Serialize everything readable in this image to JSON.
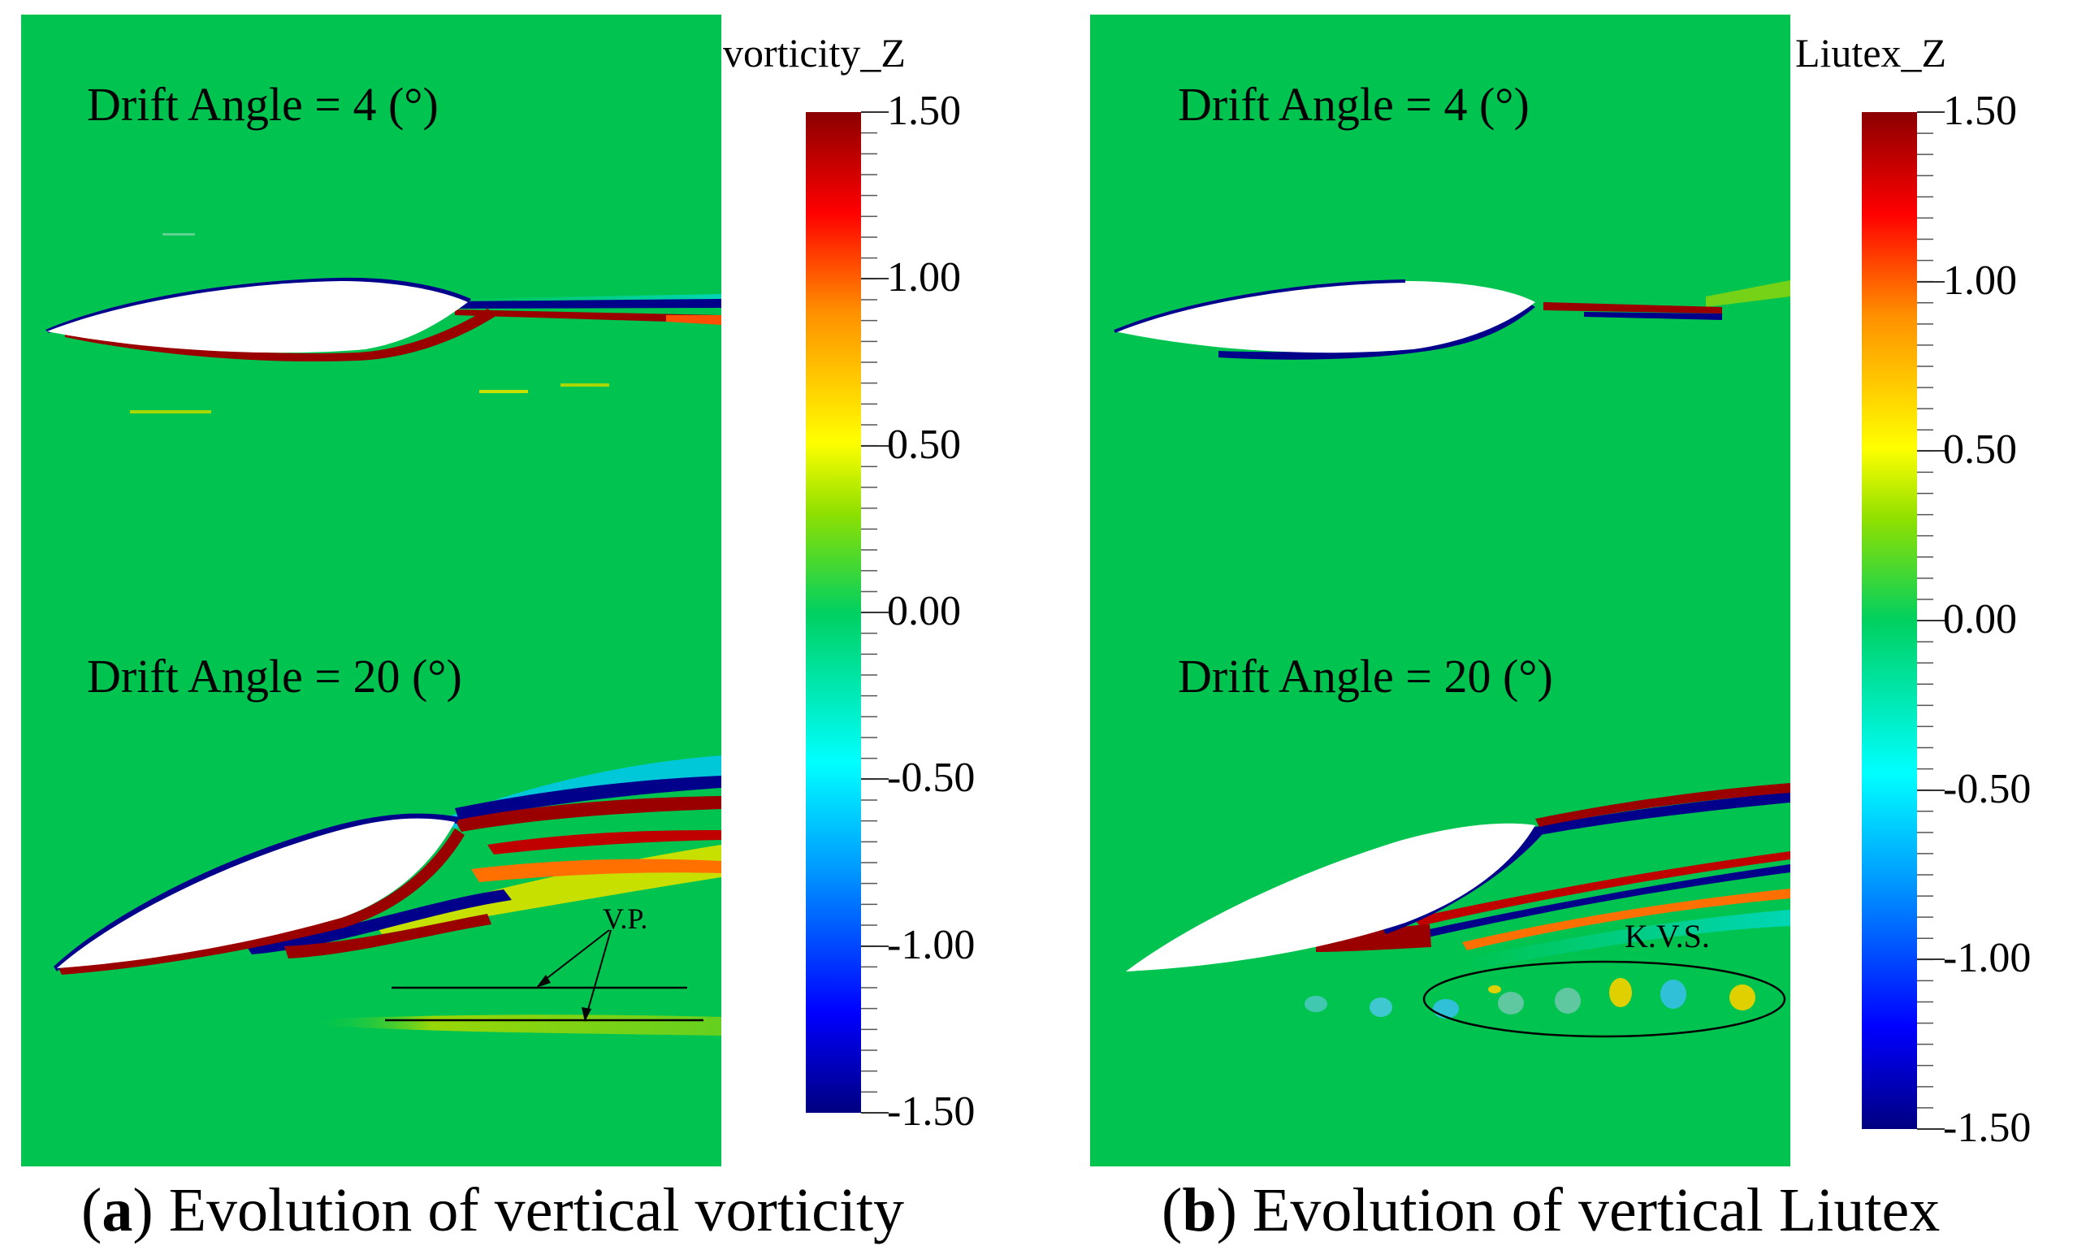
{
  "panels": [
    {
      "id": "a",
      "colorbar": {
        "title": "vorticity_Z",
        "ticks": [
          "1.50",
          "1.00",
          "0.50",
          "0.00",
          "-0.50",
          "-1.00",
          "-1.50"
        ]
      },
      "labels": {
        "top": "Drift Angle = 4 (°)",
        "bottom": "Drift Angle = 20 (°)",
        "annotation": "V.P."
      },
      "caption": {
        "letter": "a",
        "text": "Evolution of vertical vorticity"
      }
    },
    {
      "id": "b",
      "colorbar": {
        "title": "Liutex_Z",
        "ticks": [
          "1.50",
          "1.00",
          "0.50",
          "0.00",
          "-0.50",
          "-1.00",
          "-1.50"
        ]
      },
      "labels": {
        "top": "Drift Angle = 4 (°)",
        "bottom": "Drift Angle = 20 (°)",
        "annotation": "K.V.S."
      },
      "caption": {
        "letter": "b",
        "text": "Evolution of vertical Liutex"
      }
    }
  ],
  "colors": {
    "field": "#00c44f",
    "positive": "#9a0000",
    "negative": "#00008b"
  },
  "colorscale": {
    "range": [
      -1.5,
      1.5
    ],
    "stops": [
      "#000080",
      "#0000ff",
      "#00a0ff",
      "#00ffff",
      "#00d060",
      "#90e000",
      "#ffff00",
      "#ff9000",
      "#ff0000",
      "#8b0000"
    ]
  }
}
